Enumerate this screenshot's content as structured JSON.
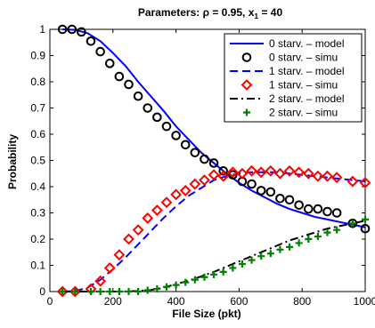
{
  "chart_data": {
    "type": "line",
    "title_prefix": "Parameters: ",
    "title_rho": "ρ = 0.95, x",
    "title_sub": "1",
    "title_suffix": " = 40",
    "xlabel": "File Size (pkt)",
    "ylabel": "Probability",
    "xlim": [
      0,
      1000
    ],
    "ylim": [
      0,
      1
    ],
    "xticks": [
      0,
      200,
      400,
      600,
      800,
      1000
    ],
    "yticks": [
      0,
      0.1,
      0.2,
      0.3,
      0.4,
      0.5,
      0.6,
      0.7,
      0.8,
      0.9,
      1
    ],
    "grid": false,
    "legend_position": "top-right",
    "colors": {
      "blue": "#0000ff",
      "red": "#ff0000",
      "black": "#000000",
      "green": "#008000"
    },
    "series": [
      {
        "name": "0 starv. – model",
        "kind": "line",
        "style": "solid",
        "color": "#0000ff",
        "x": [
          40,
          80,
          120,
          160,
          200,
          240,
          280,
          320,
          360,
          400,
          440,
          480,
          520,
          560,
          600,
          640,
          680,
          720,
          760,
          800,
          840,
          880,
          920,
          960,
          1000
        ],
        "y": [
          1.0,
          0.998,
          0.985,
          0.955,
          0.91,
          0.86,
          0.8,
          0.745,
          0.69,
          0.63,
          0.58,
          0.53,
          0.49,
          0.45,
          0.415,
          0.385,
          0.36,
          0.335,
          0.315,
          0.3,
          0.285,
          0.275,
          0.265,
          0.255,
          0.245
        ]
      },
      {
        "name": "0 starv. – simu",
        "kind": "marker",
        "marker": "circle",
        "color": "#000000",
        "x": [
          40,
          70,
          100,
          130,
          160,
          190,
          220,
          250,
          280,
          310,
          340,
          370,
          400,
          430,
          460,
          490,
          520,
          550,
          580,
          610,
          640,
          670,
          700,
          730,
          760,
          790,
          820,
          850,
          880,
          910,
          960,
          1000
        ],
        "y": [
          1.0,
          1.0,
          0.99,
          0.955,
          0.915,
          0.87,
          0.82,
          0.79,
          0.745,
          0.7,
          0.665,
          0.63,
          0.595,
          0.56,
          0.53,
          0.505,
          0.49,
          0.46,
          0.445,
          0.42,
          0.41,
          0.385,
          0.38,
          0.355,
          0.35,
          0.33,
          0.315,
          0.315,
          0.305,
          0.3,
          0.26,
          0.24
        ]
      },
      {
        "name": "1 starv. – model",
        "kind": "line",
        "style": "dashed",
        "color": "#0000ff",
        "x": [
          40,
          80,
          120,
          160,
          200,
          240,
          280,
          320,
          360,
          400,
          440,
          480,
          520,
          560,
          600,
          640,
          680,
          720,
          760,
          800,
          840,
          880,
          920,
          960,
          1000
        ],
        "y": [
          0.0,
          0.002,
          0.015,
          0.045,
          0.085,
          0.13,
          0.18,
          0.23,
          0.28,
          0.325,
          0.365,
          0.395,
          0.425,
          0.44,
          0.45,
          0.455,
          0.455,
          0.455,
          0.45,
          0.445,
          0.44,
          0.435,
          0.43,
          0.425,
          0.42
        ]
      },
      {
        "name": "1 starv. – simu",
        "kind": "marker",
        "marker": "diamond",
        "color": "#ff0000",
        "x": [
          40,
          80,
          130,
          160,
          190,
          220,
          250,
          280,
          310,
          340,
          370,
          400,
          430,
          460,
          490,
          520,
          550,
          580,
          610,
          640,
          670,
          700,
          730,
          760,
          790,
          820,
          850,
          880,
          910,
          960,
          1000
        ],
        "y": [
          0.0,
          0.0,
          0.01,
          0.04,
          0.09,
          0.14,
          0.2,
          0.235,
          0.28,
          0.31,
          0.34,
          0.37,
          0.385,
          0.41,
          0.425,
          0.445,
          0.44,
          0.455,
          0.45,
          0.46,
          0.455,
          0.46,
          0.45,
          0.46,
          0.455,
          0.45,
          0.44,
          0.44,
          0.435,
          0.42,
          0.415
        ]
      },
      {
        "name": "2 starv. – model",
        "kind": "line",
        "style": "dashdot",
        "color": "#000000",
        "x": [
          40,
          100,
          160,
          220,
          280,
          320,
          360,
          400,
          440,
          480,
          520,
          560,
          600,
          640,
          680,
          720,
          760,
          800,
          840,
          880,
          920,
          960,
          1000
        ],
        "y": [
          0.0,
          0.0,
          0.0,
          0.0,
          0.002,
          0.006,
          0.015,
          0.028,
          0.042,
          0.058,
          0.075,
          0.095,
          0.115,
          0.135,
          0.155,
          0.175,
          0.195,
          0.21,
          0.225,
          0.24,
          0.25,
          0.26,
          0.27
        ]
      },
      {
        "name": "2 starv. – simu",
        "kind": "marker",
        "marker": "plus",
        "color": "#008000",
        "x": [
          40,
          80,
          130,
          160,
          190,
          220,
          250,
          280,
          310,
          340,
          370,
          400,
          430,
          460,
          490,
          520,
          550,
          580,
          610,
          640,
          670,
          700,
          730,
          760,
          790,
          820,
          850,
          880,
          910,
          960,
          1000
        ],
        "y": [
          0.0,
          0.0,
          0.0,
          0.0,
          0.0,
          0.0,
          0.0,
          0.0,
          0.005,
          0.01,
          0.018,
          0.025,
          0.035,
          0.045,
          0.055,
          0.065,
          0.075,
          0.09,
          0.105,
          0.12,
          0.135,
          0.145,
          0.16,
          0.17,
          0.185,
          0.2,
          0.21,
          0.225,
          0.235,
          0.26,
          0.275
        ]
      }
    ]
  }
}
